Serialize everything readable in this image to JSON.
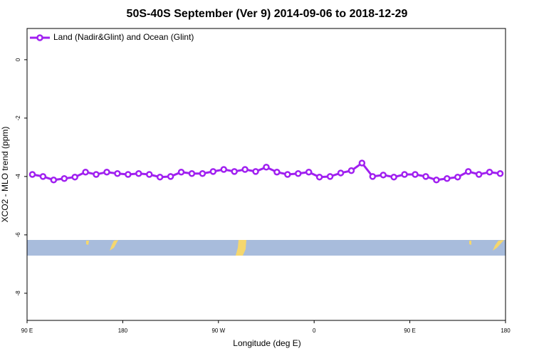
{
  "chart_data": {
    "type": "line",
    "title": "50S-40S September (Ver 9)   2014-09-06 to 2018-12-29",
    "x_label": "Longitude (deg E)",
    "y_label": "XCO2 - MLO trend (ppm)",
    "x": [
      95,
      105,
      115,
      125,
      135,
      145,
      155,
      165,
      175,
      185,
      195,
      205,
      215,
      225,
      235,
      245,
      255,
      265,
      275,
      285,
      295,
      305,
      315,
      325,
      335,
      345,
      355,
      365,
      375,
      385,
      395,
      405,
      415,
      425,
      435,
      445,
      455,
      465,
      475,
      485,
      495,
      505,
      515,
      525,
      535
    ],
    "series": [
      {
        "name": "Land (Nadir&Glint) and Ocean (Glint)",
        "color": "#a020f0",
        "values": [
          -3.93,
          -4.0,
          -4.12,
          -4.07,
          -4.02,
          -3.85,
          -3.93,
          -3.85,
          -3.9,
          -3.93,
          -3.9,
          -3.93,
          -4.02,
          -4.0,
          -3.85,
          -3.9,
          -3.9,
          -3.83,
          -3.76,
          -3.83,
          -3.76,
          -3.83,
          -3.68,
          -3.85,
          -3.93,
          -3.9,
          -3.85,
          -4.02,
          -4.0,
          -3.88,
          -3.8,
          -3.54,
          -4.0,
          -3.95,
          -4.02,
          -3.93,
          -3.93,
          -4.0,
          -4.12,
          -4.07,
          -4.02,
          -3.83,
          -3.93,
          -3.85,
          -3.9
        ]
      }
    ],
    "xlim": [
      90,
      540
    ],
    "xticks": [
      {
        "value": 90,
        "label": "90 E"
      },
      180,
      {
        "value": 270,
        "label": "90 W"
      },
      {
        "value": 360,
        "label": "0"
      },
      {
        "value": 450,
        "label": "90 E"
      },
      {
        "value": 540,
        "label": "180"
      }
    ],
    "ylim": [
      -8.93,
      1.07
    ],
    "yticks": [
      0,
      -2,
      -4,
      -6,
      -8
    ],
    "legend": "top-left"
  }
}
